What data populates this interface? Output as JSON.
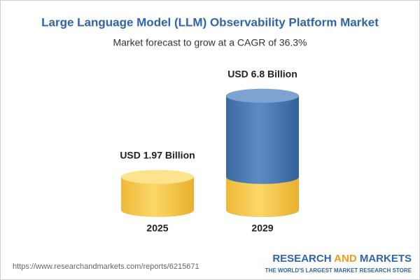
{
  "chart_data": {
    "type": "cylinder",
    "title": "Large Language Model (LLM) Observability Platform Market",
    "subtitle": "Market forecast to grow at a CAGR of 36.3%",
    "categories": [
      "2025",
      "2029"
    ],
    "values": [
      1.97,
      6.8
    ],
    "value_labels": [
      "USD 1.97 Billion",
      "USD 6.8 Billion"
    ]
  },
  "footer": {
    "url": "https://www.researchandmarkets.com/reports/6215671",
    "logo": [
      "RESEARCH",
      "AND",
      "MARKETS"
    ],
    "tagline": "THE WORLD'S LARGEST MARKET RESEARCH STORE"
  }
}
